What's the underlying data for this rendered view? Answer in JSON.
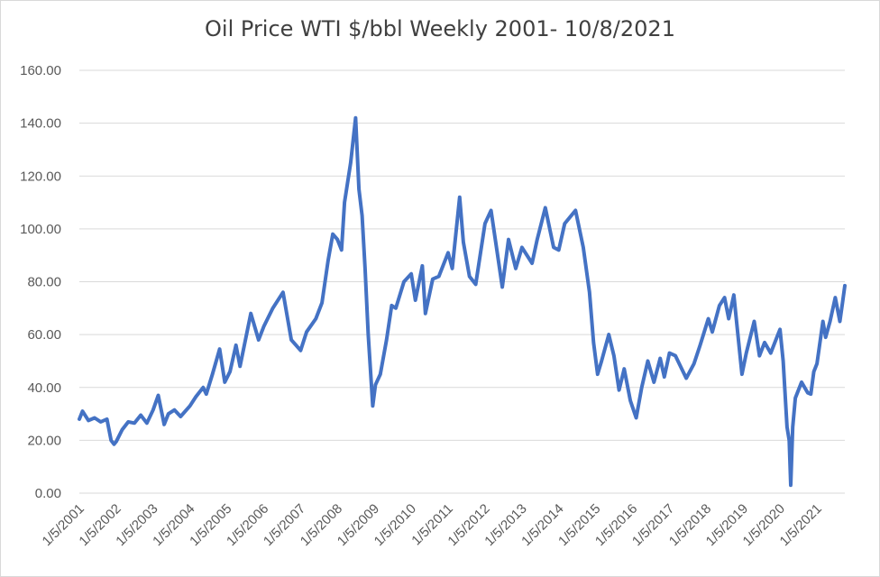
{
  "chart_data": {
    "type": "line",
    "title": "Oil Price WTI $/bbl  Weekly 2001- 10/8/2021",
    "xlabel": "",
    "ylabel": "",
    "ylim": [
      0,
      160
    ],
    "yticks": [
      "0.00",
      "20.00",
      "40.00",
      "60.00",
      "80.00",
      "100.00",
      "120.00",
      "140.00",
      "160.00"
    ],
    "xticks": [
      "1/5/2001",
      "1/5/2002",
      "1/5/2003",
      "1/5/2004",
      "1/5/2005",
      "1/5/2006",
      "1/5/2007",
      "1/5/2008",
      "1/5/2009",
      "1/5/2010",
      "1/5/2011",
      "1/5/2012",
      "1/5/2013",
      "1/5/2014",
      "1/5/2015",
      "1/5/2016",
      "1/5/2017",
      "1/5/2018",
      "1/5/2019",
      "1/5/2020",
      "1/5/2021"
    ],
    "xlim": [
      "2001-01-05",
      "2021-10-08"
    ],
    "grid": true,
    "legend": "none",
    "series": [
      {
        "color": "#4472c4",
        "points": [
          [
            "2001-01-05",
            28.0
          ],
          [
            "2001-02-05",
            31.0
          ],
          [
            "2001-04-05",
            27.5
          ],
          [
            "2001-06-05",
            28.5
          ],
          [
            "2001-08-05",
            27.0
          ],
          [
            "2001-10-05",
            28.0
          ],
          [
            "2001-11-15",
            20.0
          ],
          [
            "2001-12-15",
            18.5
          ],
          [
            "2002-01-05",
            19.5
          ],
          [
            "2002-03-05",
            24.0
          ],
          [
            "2002-05-05",
            27.0
          ],
          [
            "2002-07-05",
            26.5
          ],
          [
            "2002-09-05",
            29.5
          ],
          [
            "2002-11-05",
            26.5
          ],
          [
            "2003-01-05",
            31.5
          ],
          [
            "2003-02-25",
            37.0
          ],
          [
            "2003-04-25",
            26.0
          ],
          [
            "2003-06-05",
            30.0
          ],
          [
            "2003-08-05",
            31.5
          ],
          [
            "2003-10-05",
            29.0
          ],
          [
            "2004-01-05",
            33.0
          ],
          [
            "2004-03-05",
            36.5
          ],
          [
            "2004-05-15",
            40.0
          ],
          [
            "2004-06-15",
            37.5
          ],
          [
            "2004-08-15",
            45.0
          ],
          [
            "2004-10-25",
            54.5
          ],
          [
            "2004-12-15",
            42.0
          ],
          [
            "2005-02-05",
            46.0
          ],
          [
            "2005-04-05",
            56.0
          ],
          [
            "2005-05-15",
            48.0
          ],
          [
            "2005-08-30",
            68.0
          ],
          [
            "2005-11-15",
            58.0
          ],
          [
            "2006-01-05",
            63.0
          ],
          [
            "2006-04-05",
            70.0
          ],
          [
            "2006-07-15",
            76.0
          ],
          [
            "2006-10-05",
            58.0
          ],
          [
            "2007-01-05",
            54.0
          ],
          [
            "2007-03-05",
            61.0
          ],
          [
            "2007-06-05",
            66.0
          ],
          [
            "2007-08-05",
            72.0
          ],
          [
            "2007-10-05",
            88.0
          ],
          [
            "2007-11-20",
            98.0
          ],
          [
            "2008-01-05",
            96.0
          ],
          [
            "2008-02-15",
            92.0
          ],
          [
            "2008-03-15",
            110.0
          ],
          [
            "2008-05-15",
            125.0
          ],
          [
            "2008-07-03",
            142.0
          ],
          [
            "2008-08-05",
            115.0
          ],
          [
            "2008-09-05",
            105.0
          ],
          [
            "2008-10-05",
            85.0
          ],
          [
            "2008-11-05",
            60.0
          ],
          [
            "2008-12-20",
            33.0
          ],
          [
            "2009-01-15",
            41.0
          ],
          [
            "2009-03-05",
            45.0
          ],
          [
            "2009-05-05",
            58.0
          ],
          [
            "2009-06-25",
            71.0
          ],
          [
            "2009-08-05",
            70.0
          ],
          [
            "2009-10-25",
            80.0
          ],
          [
            "2010-01-05",
            83.0
          ],
          [
            "2010-02-15",
            73.0
          ],
          [
            "2010-04-25",
            86.0
          ],
          [
            "2010-05-25",
            68.0
          ],
          [
            "2010-08-05",
            81.0
          ],
          [
            "2010-10-05",
            82.0
          ],
          [
            "2011-01-05",
            91.0
          ],
          [
            "2011-02-15",
            85.0
          ],
          [
            "2011-04-29",
            112.0
          ],
          [
            "2011-06-05",
            95.0
          ],
          [
            "2011-08-05",
            82.0
          ],
          [
            "2011-10-05",
            79.0
          ],
          [
            "2012-01-05",
            102.0
          ],
          [
            "2012-03-05",
            107.0
          ],
          [
            "2012-06-25",
            78.0
          ],
          [
            "2012-08-25",
            96.0
          ],
          [
            "2012-11-05",
            85.0
          ],
          [
            "2013-01-05",
            93.0
          ],
          [
            "2013-04-15",
            87.0
          ],
          [
            "2013-06-05",
            96.0
          ],
          [
            "2013-08-25",
            108.0
          ],
          [
            "2013-11-15",
            93.0
          ],
          [
            "2014-01-05",
            92.0
          ],
          [
            "2014-03-05",
            102.0
          ],
          [
            "2014-06-20",
            107.0
          ],
          [
            "2014-09-05",
            93.0
          ],
          [
            "2014-11-05",
            76.0
          ],
          [
            "2014-12-15",
            57.0
          ],
          [
            "2015-01-25",
            45.0
          ],
          [
            "2015-03-05",
            50.0
          ],
          [
            "2015-05-15",
            60.0
          ],
          [
            "2015-07-05",
            52.0
          ],
          [
            "2015-08-25",
            39.0
          ],
          [
            "2015-10-15",
            47.0
          ],
          [
            "2015-12-15",
            35.0
          ],
          [
            "2016-02-11",
            28.5
          ],
          [
            "2016-04-05",
            40.0
          ],
          [
            "2016-06-05",
            50.0
          ],
          [
            "2016-08-05",
            42.0
          ],
          [
            "2016-10-05",
            51.0
          ],
          [
            "2016-11-15",
            44.0
          ],
          [
            "2017-01-05",
            53.0
          ],
          [
            "2017-03-05",
            52.0
          ],
          [
            "2017-06-20",
            43.5
          ],
          [
            "2017-09-05",
            49.0
          ],
          [
            "2017-11-05",
            56.0
          ],
          [
            "2018-01-25",
            66.0
          ],
          [
            "2018-03-05",
            61.0
          ],
          [
            "2018-05-15",
            71.0
          ],
          [
            "2018-07-05",
            74.0
          ],
          [
            "2018-08-15",
            66.0
          ],
          [
            "2018-10-05",
            75.0
          ],
          [
            "2018-12-24",
            45.0
          ],
          [
            "2019-02-05",
            53.0
          ],
          [
            "2019-04-25",
            65.0
          ],
          [
            "2019-06-15",
            52.0
          ],
          [
            "2019-08-05",
            57.0
          ],
          [
            "2019-10-05",
            53.0
          ],
          [
            "2019-12-15",
            60.0
          ],
          [
            "2020-01-05",
            62.0
          ],
          [
            "2020-02-05",
            50.0
          ],
          [
            "2020-03-15",
            25.0
          ],
          [
            "2020-04-05",
            20.0
          ],
          [
            "2020-04-20",
            3.0
          ],
          [
            "2020-05-10",
            25.0
          ],
          [
            "2020-06-05",
            36.0
          ],
          [
            "2020-08-05",
            42.0
          ],
          [
            "2020-10-05",
            38.0
          ],
          [
            "2020-11-05",
            37.5
          ],
          [
            "2020-12-05",
            46.0
          ],
          [
            "2021-01-05",
            49.0
          ],
          [
            "2021-03-05",
            65.0
          ],
          [
            "2021-04-01",
            59.0
          ],
          [
            "2021-05-15",
            65.0
          ],
          [
            "2021-07-05",
            74.0
          ],
          [
            "2021-08-20",
            65.0
          ],
          [
            "2021-09-15",
            72.0
          ],
          [
            "2021-10-08",
            78.5
          ]
        ]
      }
    ]
  }
}
